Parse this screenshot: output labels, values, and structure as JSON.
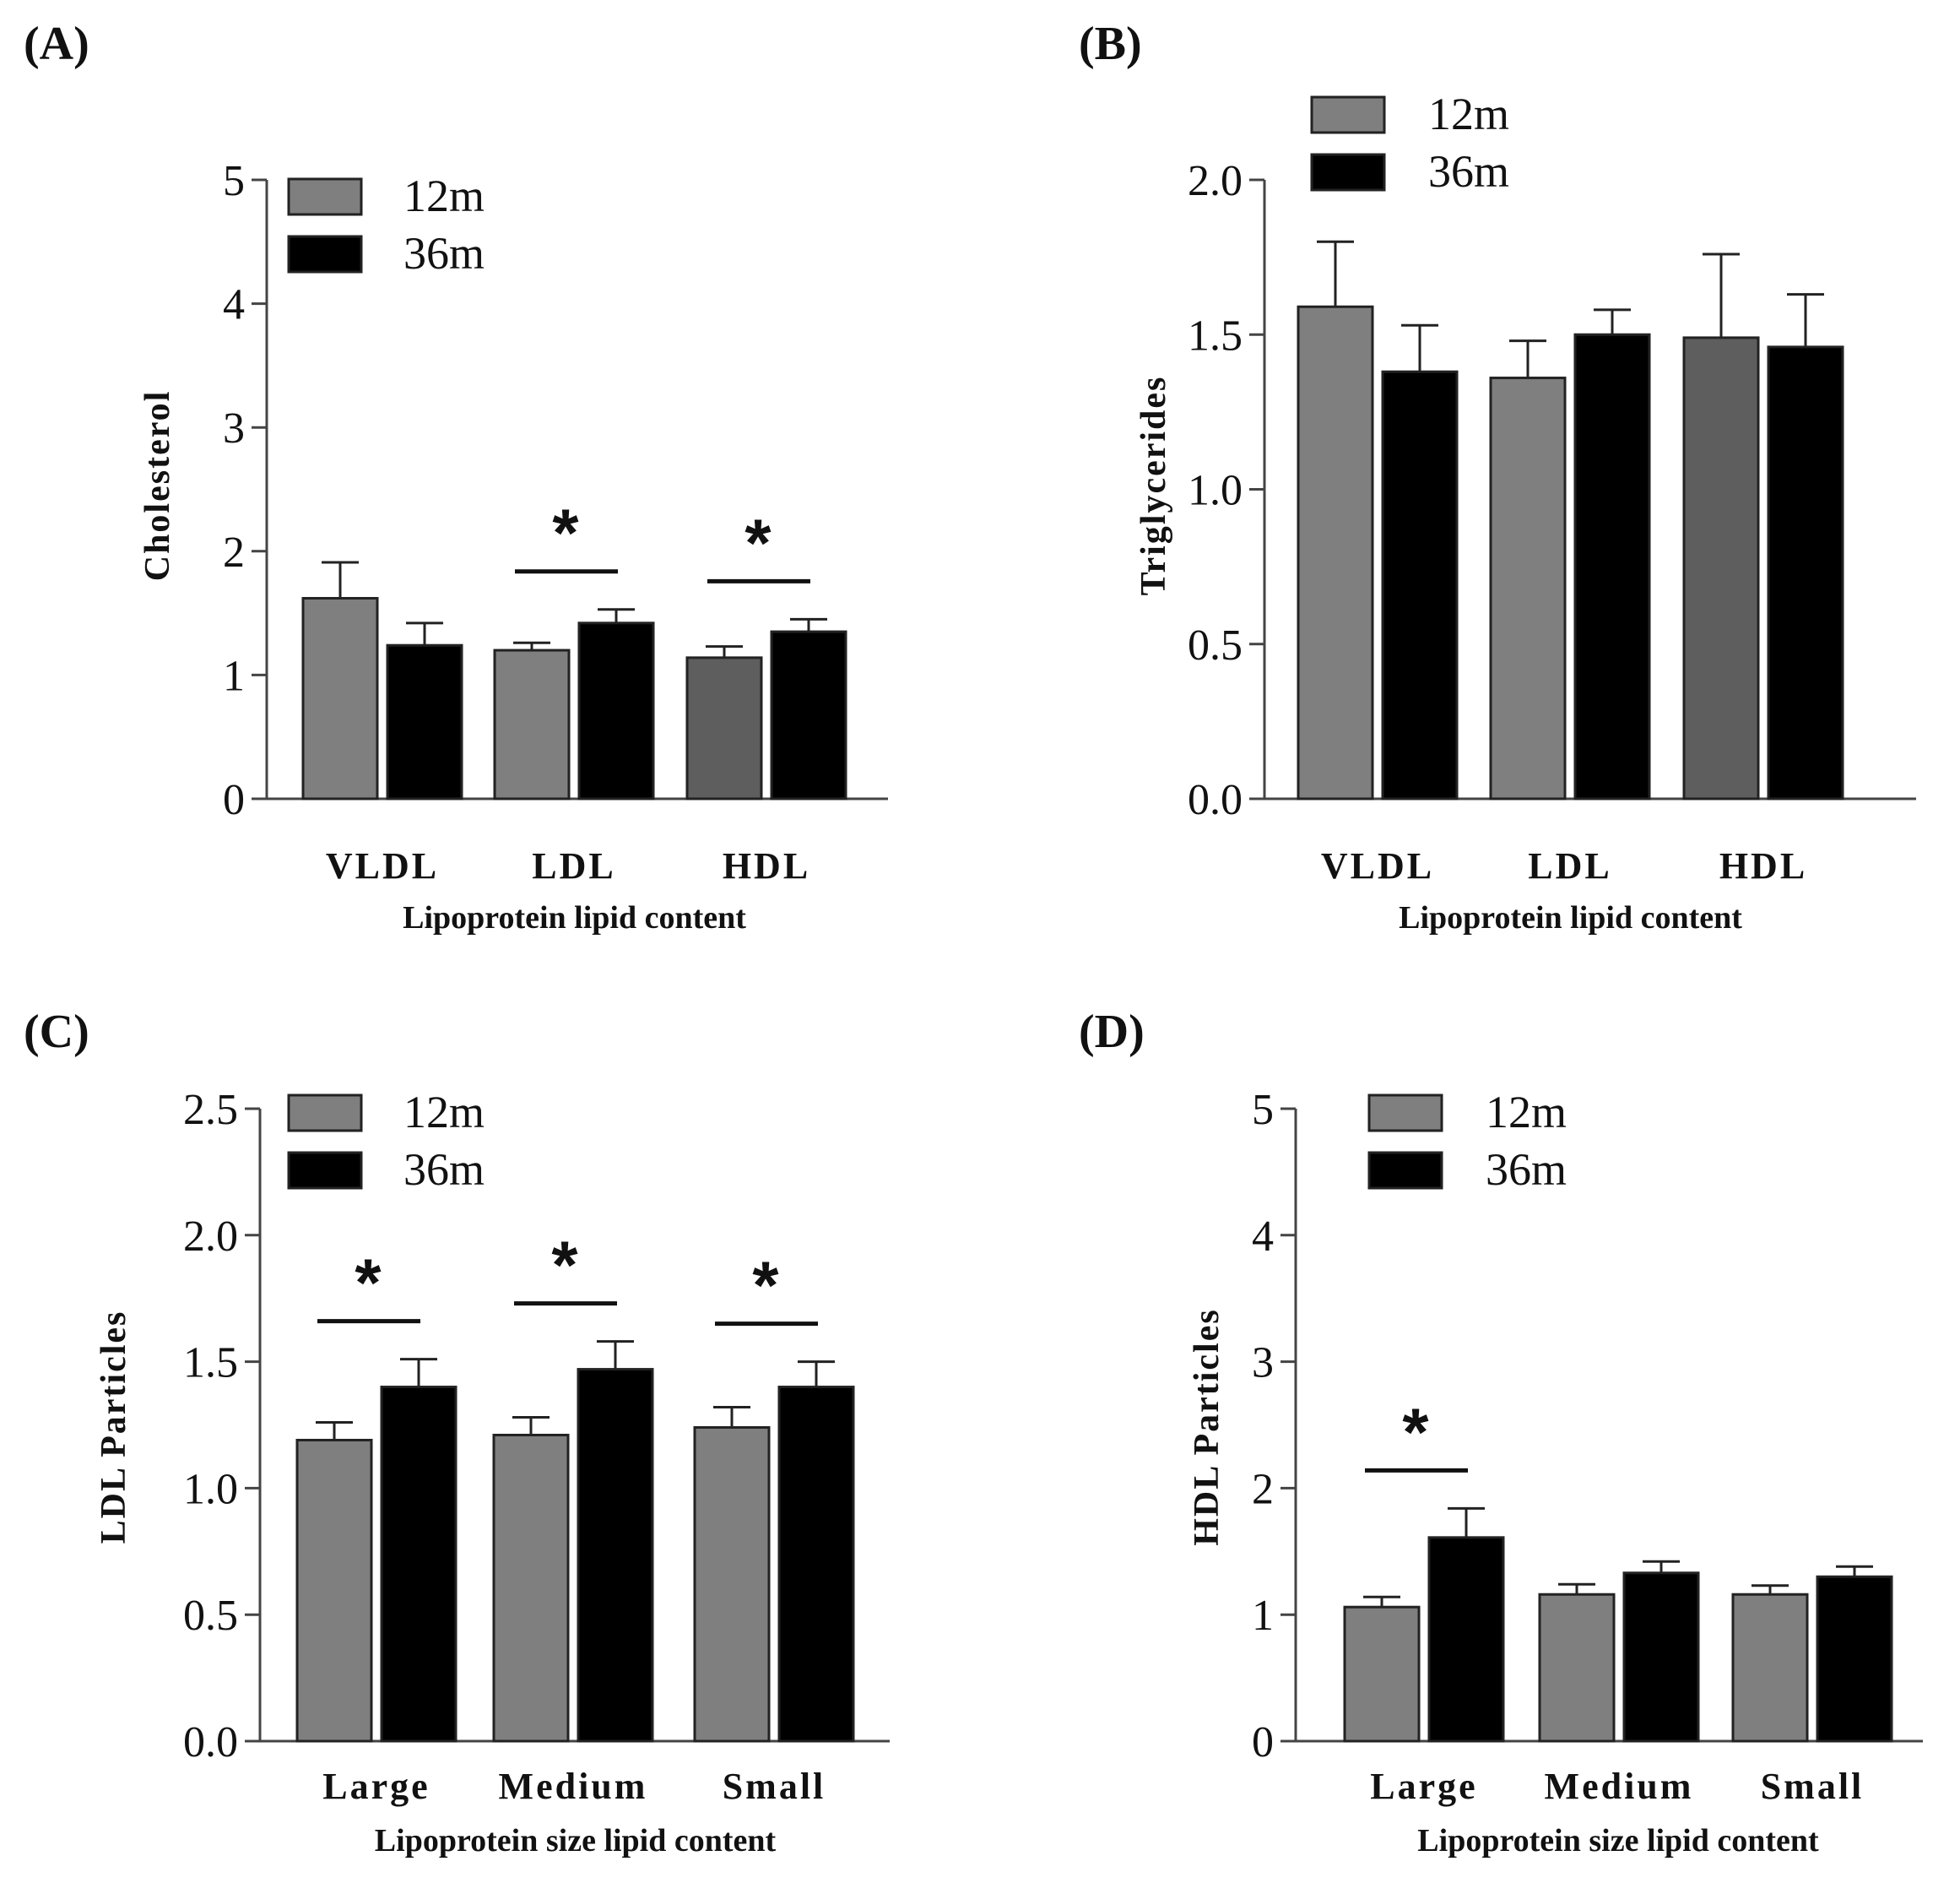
{
  "figure": {
    "colors": {
      "12m": "#7f7f7f",
      "12m_dark": "#5e5e5e",
      "36m": "#000000",
      "axis": "#444444"
    }
  },
  "chart_data": [
    {
      "panel": "(A)",
      "type": "bar",
      "ylabel": "Cholesterol",
      "xlabel": "Lipoprotein lipid content",
      "ylim": [
        0,
        5
      ],
      "yticks": [
        "0",
        "1",
        "2",
        "3",
        "4",
        "5"
      ],
      "yticks_values": [
        0,
        1,
        2,
        3,
        4,
        5
      ],
      "categories": [
        "VLDL",
        "LDL",
        "HDL"
      ],
      "series": [
        {
          "name": "12m",
          "values": [
            1.62,
            1.2,
            1.14
          ],
          "errors": [
            0.29,
            0.06,
            0.09
          ]
        },
        {
          "name": "36m",
          "values": [
            1.24,
            1.42,
            1.35
          ],
          "errors": [
            0.18,
            0.11,
            0.1
          ]
        }
      ],
      "dark_first_bar": [
        false,
        false,
        true
      ],
      "significance": [
        {
          "category": 1,
          "label": "*"
        },
        {
          "category": 2,
          "label": "*"
        }
      ],
      "legend_position": "top-left"
    },
    {
      "panel": "(B)",
      "type": "bar",
      "ylabel": "Triglycerides",
      "xlabel": "Lipoprotein lipid content",
      "ylim": [
        0,
        2
      ],
      "yticks": [
        "0.0",
        "0.5",
        "1.0",
        "1.5",
        "2.0"
      ],
      "yticks_values": [
        0,
        0.5,
        1.0,
        1.5,
        2.0
      ],
      "categories": [
        "VLDL",
        "LDL",
        "HDL"
      ],
      "series": [
        {
          "name": "12m",
          "values": [
            1.59,
            1.36,
            1.49
          ],
          "errors": [
            0.21,
            0.12,
            0.27
          ]
        },
        {
          "name": "36m",
          "values": [
            1.38,
            1.5,
            1.46
          ],
          "errors": [
            0.15,
            0.08,
            0.17
          ]
        }
      ],
      "dark_first_bar": [
        false,
        false,
        true
      ],
      "significance": [],
      "legend_position": "top-left"
    },
    {
      "panel": "(C)",
      "type": "bar",
      "ylabel": "LDL Particles",
      "xlabel": "Lipoprotein size lipid content",
      "ylim": [
        0,
        2.5
      ],
      "yticks": [
        "0.0",
        "0.5",
        "1.0",
        "1.5",
        "2.0",
        "2.5"
      ],
      "yticks_values": [
        0,
        0.5,
        1.0,
        1.5,
        2.0,
        2.5
      ],
      "categories": [
        "Large",
        "Medium",
        "Small"
      ],
      "series": [
        {
          "name": "12m",
          "values": [
            1.19,
            1.21,
            1.24
          ],
          "errors": [
            0.07,
            0.07,
            0.08
          ]
        },
        {
          "name": "36m",
          "values": [
            1.4,
            1.47,
            1.4
          ],
          "errors": [
            0.11,
            0.11,
            0.1
          ]
        }
      ],
      "dark_first_bar": [
        false,
        false,
        false
      ],
      "significance": [
        {
          "category": 0,
          "label": "*"
        },
        {
          "category": 1,
          "label": "*"
        },
        {
          "category": 2,
          "label": "*"
        }
      ],
      "legend_position": "top-left"
    },
    {
      "panel": "(D)",
      "type": "bar",
      "ylabel": "HDL Particles",
      "xlabel": "Lipoprotein size lipid content",
      "ylim": [
        0,
        5
      ],
      "yticks": [
        "0",
        "1",
        "2",
        "3",
        "4",
        "5"
      ],
      "yticks_values": [
        0,
        1,
        2,
        3,
        4,
        5
      ],
      "categories": [
        "Large",
        "Medium",
        "Small"
      ],
      "series": [
        {
          "name": "12m",
          "values": [
            1.06,
            1.16,
            1.16
          ],
          "errors": [
            0.08,
            0.08,
            0.07
          ]
        },
        {
          "name": "36m",
          "values": [
            1.61,
            1.33,
            1.3
          ],
          "errors": [
            0.23,
            0.09,
            0.08
          ]
        }
      ],
      "dark_first_bar": [
        false,
        false,
        false
      ],
      "significance": [
        {
          "category": 0,
          "label": "*"
        }
      ],
      "legend_position": "top-left"
    }
  ]
}
